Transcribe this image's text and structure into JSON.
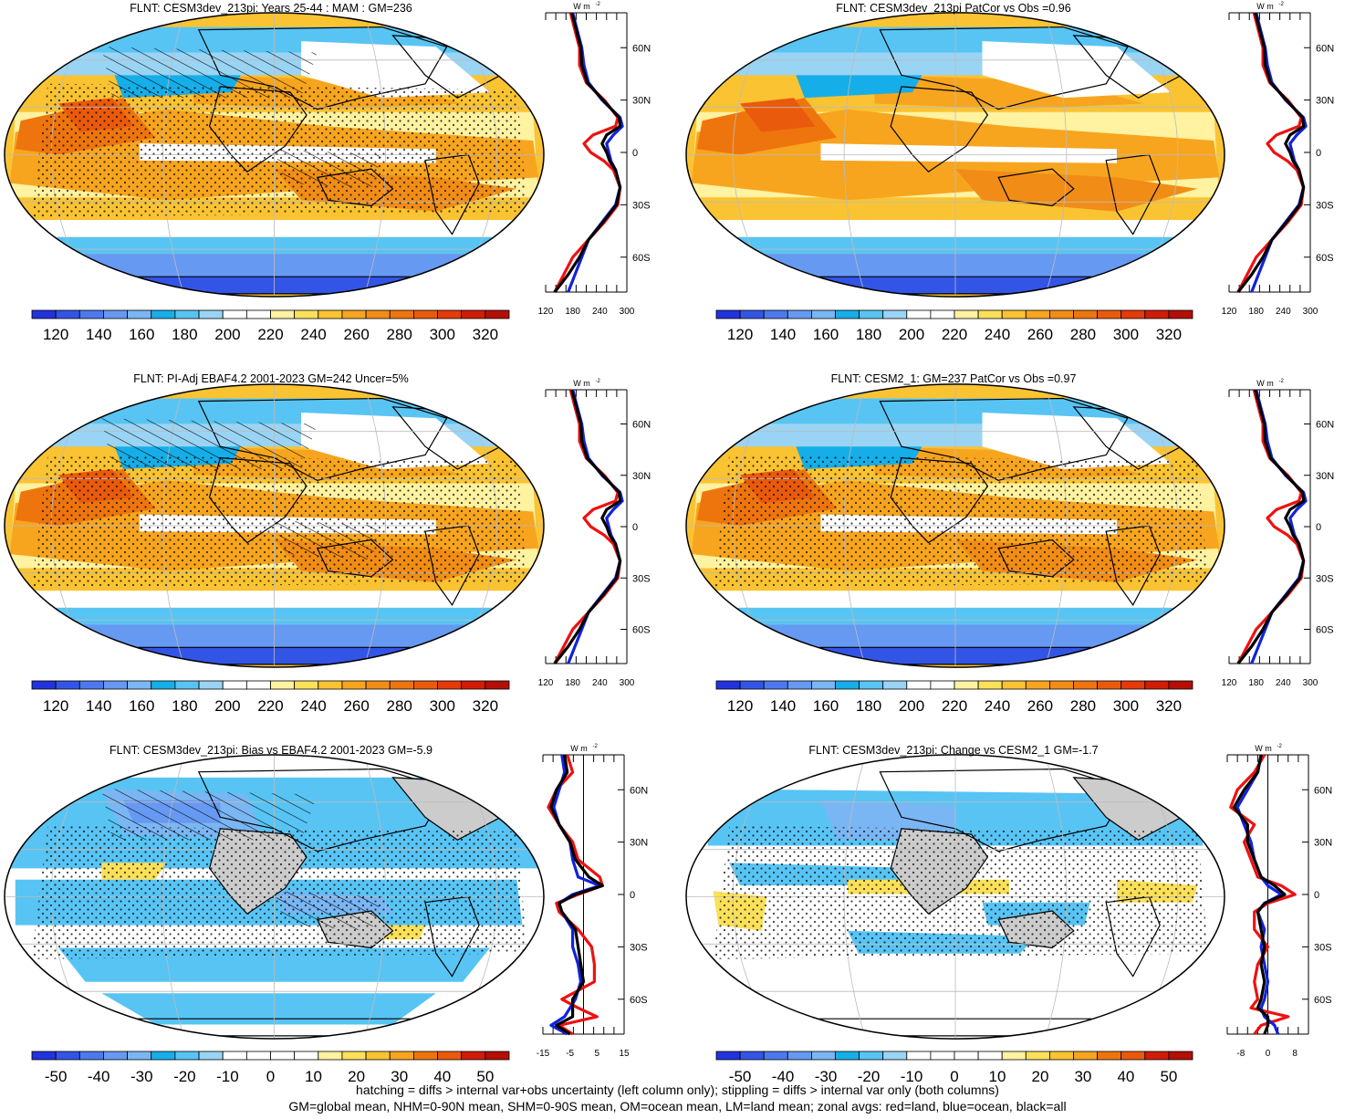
{
  "colors": {
    "abs_scale": [
      "#2233dd",
      "#3355e6",
      "#4d79ee",
      "#6699f2",
      "#7ab6f4",
      "#16aee8",
      "#58c4f4",
      "#9ad4f4",
      "#ffffff",
      "#ffffff",
      "#fff2a0",
      "#fbe05a",
      "#fac332",
      "#f7a51f",
      "#f18d16",
      "#ee750e",
      "#ea5a0c",
      "#e53a0a",
      "#d11c07",
      "#b40f05"
    ],
    "diff_scale": [
      "#2233dd",
      "#3355e6",
      "#4d79ee",
      "#6699f2",
      "#7ab6f4",
      "#16aee8",
      "#58c4f4",
      "#9ad4f4",
      "#ffffff",
      "#ffffff",
      "#ffffff",
      "#ffffff",
      "#fff2a0",
      "#fbe05a",
      "#fac332",
      "#f7a51f",
      "#ee750e",
      "#ea5a0c",
      "#d11c07",
      "#b40f05"
    ],
    "land": "#cccccc",
    "zonal_land": "#ee1111",
    "zonal_ocean": "#1122dd",
    "zonal_all": "#000000"
  },
  "panels": [
    {
      "id": "p1",
      "title": "FLNT: CESM3dev_213pi: Years 25-44 : MAM : GM=236",
      "kind": "abs",
      "hatch": true,
      "stipple": true,
      "colorbar_labels": [
        "120",
        "140",
        "160",
        "180",
        "200",
        "220",
        "240",
        "260",
        "280",
        "300",
        "320"
      ],
      "zonal_xticks": [
        "120",
        "180",
        "240",
        "300"
      ],
      "zonal_range": [
        120,
        300
      ]
    },
    {
      "id": "p2",
      "title": "FLNT: CESM3dev_213pi PatCor vs Obs =0.96",
      "kind": "abs",
      "hatch": false,
      "stipple": false,
      "colorbar_labels": [
        "120",
        "140",
        "160",
        "180",
        "200",
        "220",
        "240",
        "260",
        "280",
        "300",
        "320"
      ],
      "zonal_xticks": [
        "120",
        "180",
        "240",
        "300"
      ],
      "zonal_range": [
        120,
        300
      ]
    },
    {
      "id": "p3",
      "title": "FLNT: PI-Adj EBAF4.2 2001-2023 GM=242 Uncer=5%",
      "kind": "abs",
      "hatch": true,
      "stipple": true,
      "colorbar_labels": [
        "120",
        "140",
        "160",
        "180",
        "200",
        "220",
        "240",
        "260",
        "280",
        "300",
        "320"
      ],
      "zonal_xticks": [
        "120",
        "180",
        "240",
        "300"
      ],
      "zonal_range": [
        120,
        300
      ]
    },
    {
      "id": "p4",
      "title": "FLNT: CESM2_1: GM=237 PatCor vs Obs =0.97",
      "kind": "abs",
      "hatch": false,
      "stipple": true,
      "colorbar_labels": [
        "120",
        "140",
        "160",
        "180",
        "200",
        "220",
        "240",
        "260",
        "280",
        "300",
        "320"
      ],
      "zonal_xticks": [
        "120",
        "180",
        "240",
        "300"
      ],
      "zonal_range": [
        120,
        300
      ]
    },
    {
      "id": "p5",
      "title": "FLNT: CESM3dev_213pi: Bias vs EBAF4.2 2001-2023 GM=-5.9",
      "kind": "diff",
      "hatch": true,
      "stipple": true,
      "colorbar_labels": [
        "-50",
        "-40",
        "-30",
        "-20",
        "-10",
        "0",
        "10",
        "20",
        "30",
        "40",
        "50"
      ],
      "zonal_xticks": [
        "-15",
        "-5",
        "5",
        "15"
      ],
      "zonal_range": [
        -15,
        15
      ]
    },
    {
      "id": "p6",
      "title": "FLNT: CESM3dev_213pi: Change vs CESM2_1 GM=-1.7",
      "kind": "diff",
      "hatch": false,
      "stipple": true,
      "colorbar_labels": [
        "-50",
        "-40",
        "-30",
        "-20",
        "-10",
        "0",
        "10",
        "20",
        "30",
        "40",
        "50"
      ],
      "zonal_xticks": [
        "-8",
        "0",
        "8"
      ],
      "zonal_range": [
        -12,
        12
      ]
    }
  ],
  "zonal_lat_labels": [
    "60N",
    "30N",
    "0",
    "30S",
    "60S"
  ],
  "zonal_units": "W m",
  "zonal_units_exp": "-2",
  "zonal_profiles": {
    "abs": {
      "lat": [
        80,
        70,
        60,
        50,
        40,
        30,
        20,
        15,
        10,
        5,
        0,
        -5,
        -10,
        -20,
        -30,
        -40,
        -50,
        -60,
        -70,
        -80
      ],
      "ocean": [
        180,
        190,
        200,
        205,
        215,
        245,
        285,
        290,
        270,
        255,
        260,
        265,
        275,
        285,
        275,
        245,
        215,
        200,
        185,
        170
      ],
      "land": [
        175,
        185,
        195,
        195,
        210,
        250,
        280,
        275,
        225,
        205,
        220,
        250,
        270,
        285,
        280,
        250,
        215,
        180,
        160,
        140
      ],
      "all": [
        178,
        188,
        198,
        200,
        212,
        247,
        283,
        285,
        255,
        245,
        255,
        262,
        275,
        285,
        277,
        247,
        215,
        195,
        170,
        140
      ]
    },
    "bias": {
      "lat": [
        80,
        70,
        60,
        50,
        40,
        30,
        20,
        10,
        5,
        0,
        -5,
        -10,
        -20,
        -30,
        -40,
        -50,
        -60,
        -65,
        -70,
        -75,
        -80
      ],
      "ocean": [
        -8,
        -7,
        -9,
        -11,
        -9,
        -5,
        -4,
        -2,
        6,
        -4,
        -9,
        -8,
        -4,
        -4,
        -2,
        -1,
        -3,
        -5,
        -7,
        -12,
        -6
      ],
      "land": [
        -6,
        -4,
        -10,
        -13,
        -9,
        -4,
        -2,
        6,
        7,
        -2,
        -10,
        -9,
        -2,
        3,
        4,
        4,
        -8,
        -2,
        5,
        -9,
        -4
      ],
      "all": [
        -7,
        -6,
        -10,
        -12,
        -9,
        -5,
        -3,
        2,
        7,
        -3,
        -9,
        -8,
        -3,
        -2,
        -1,
        0,
        -4,
        -4,
        -4,
        -10,
        -5
      ]
    },
    "change": {
      "lat": [
        80,
        70,
        60,
        50,
        40,
        30,
        20,
        10,
        5,
        0,
        -5,
        -10,
        -20,
        -30,
        -40,
        -50,
        -60,
        -65,
        -70,
        -75,
        -80
      ],
      "ocean": [
        -2,
        -3,
        -6,
        -9,
        -7,
        -5,
        -4,
        -2,
        0,
        4,
        -1,
        -3,
        -1,
        -2,
        -1,
        0,
        -1,
        -2,
        -1,
        2,
        3
      ],
      "land": [
        -1,
        -4,
        -9,
        -11,
        -4,
        -7,
        -5,
        -3,
        4,
        8,
        0,
        -4,
        -4,
        0,
        -3,
        -4,
        -3,
        -5,
        6,
        -2,
        -4
      ],
      "all": [
        -2,
        -3,
        -7,
        -10,
        -6,
        -6,
        -4,
        -2,
        2,
        5,
        -1,
        -3,
        -2,
        -1,
        -2,
        -1,
        -2,
        -3,
        0,
        0,
        -1
      ]
    }
  },
  "footer": {
    "line1": "hatching = diffs > internal var+obs uncertainty (left column only); stippling = diffs > internal var only (both columns)",
    "line2": "GM=global mean, NHM=0-90N mean, SHM=0-90S mean, OM=ocean mean, LM=land mean; zonal avgs: red=land, blue=ocean, black=all"
  }
}
